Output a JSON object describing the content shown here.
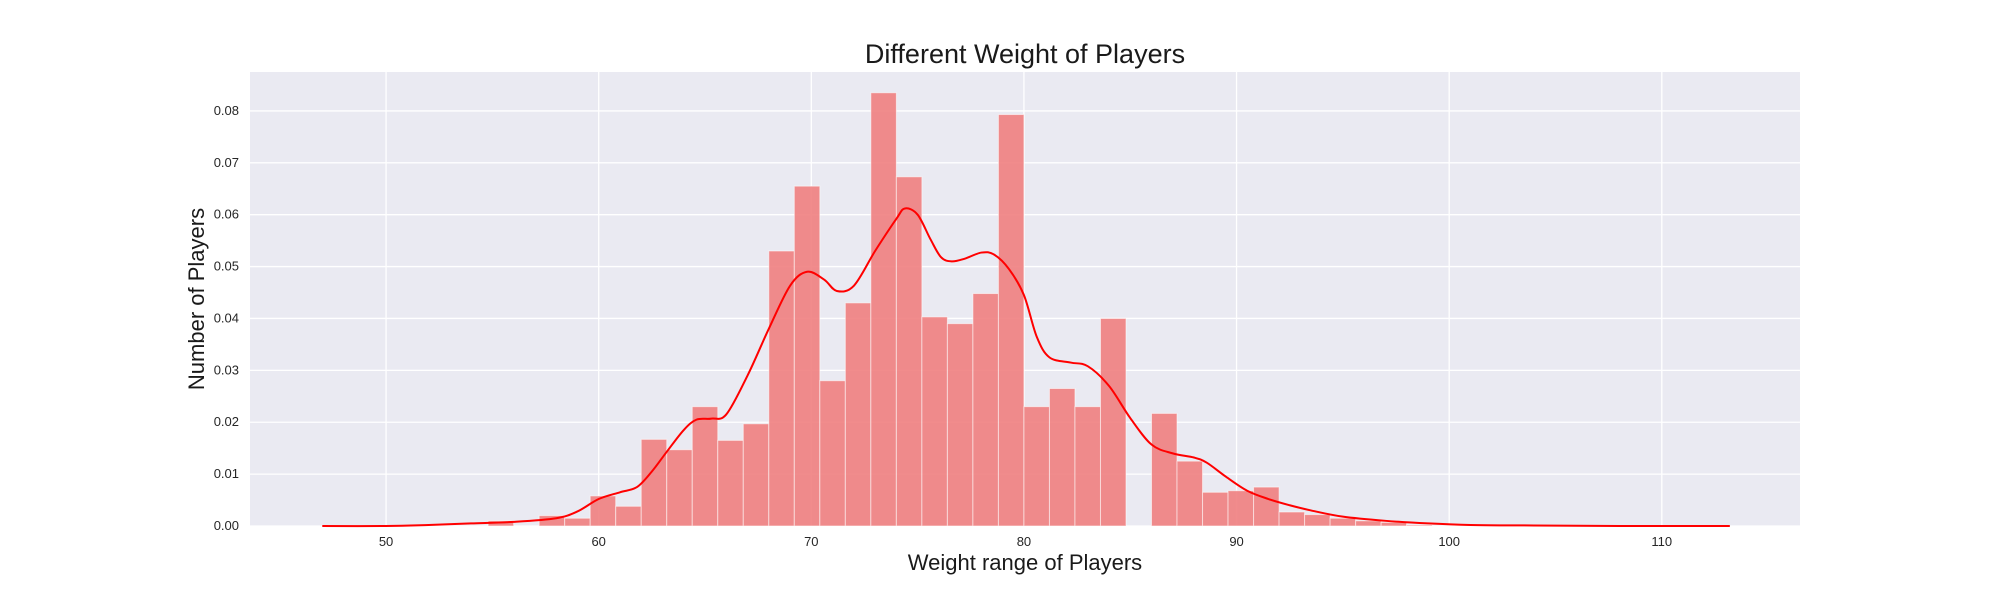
{
  "chart_data": {
    "type": "bar",
    "title": "Different Weight of Players",
    "xlabel": "Weight range of Players",
    "ylabel": "Number of Players",
    "xlim": [
      43.6,
      116.5
    ],
    "ylim": [
      0,
      0.0875
    ],
    "xticks": [
      50,
      60,
      70,
      80,
      90,
      100,
      110
    ],
    "yticks": [
      "0.00",
      "0.01",
      "0.02",
      "0.03",
      "0.04",
      "0.05",
      "0.06",
      "0.07",
      "0.08"
    ],
    "grid": true,
    "colors": {
      "plot_bg": "#eaeaf2",
      "grid": "#ffffff",
      "bar": "#f08080",
      "kde": "#ff0000"
    },
    "bins": [
      {
        "x0": 54.8,
        "x1": 56.0,
        "value": 0.001
      },
      {
        "x0": 56.0,
        "x1": 57.2,
        "value": 0.0
      },
      {
        "x0": 57.2,
        "x1": 58.4,
        "value": 0.002
      },
      {
        "x0": 58.4,
        "x1": 59.6,
        "value": 0.0015
      },
      {
        "x0": 59.6,
        "x1": 60.8,
        "value": 0.0058
      },
      {
        "x0": 60.8,
        "x1": 62.0,
        "value": 0.0038
      },
      {
        "x0": 62.0,
        "x1": 63.2,
        "value": 0.0167
      },
      {
        "x0": 63.2,
        "x1": 64.4,
        "value": 0.0147
      },
      {
        "x0": 64.4,
        "x1": 65.6,
        "value": 0.023
      },
      {
        "x0": 65.6,
        "x1": 66.8,
        "value": 0.0165
      },
      {
        "x0": 66.8,
        "x1": 68.0,
        "value": 0.0197
      },
      {
        "x0": 68.0,
        "x1": 69.2,
        "value": 0.053
      },
      {
        "x0": 69.2,
        "x1": 70.4,
        "value": 0.0655
      },
      {
        "x0": 70.4,
        "x1": 71.6,
        "value": 0.028
      },
      {
        "x0": 71.6,
        "x1": 72.8,
        "value": 0.043
      },
      {
        "x0": 72.8,
        "x1": 74.0,
        "value": 0.0835
      },
      {
        "x0": 74.0,
        "x1": 75.2,
        "value": 0.0673
      },
      {
        "x0": 75.2,
        "x1": 76.4,
        "value": 0.0403
      },
      {
        "x0": 76.4,
        "x1": 77.6,
        "value": 0.039
      },
      {
        "x0": 77.6,
        "x1": 78.8,
        "value": 0.0448
      },
      {
        "x0": 78.8,
        "x1": 80.0,
        "value": 0.0793
      },
      {
        "x0": 80.0,
        "x1": 81.2,
        "value": 0.023
      },
      {
        "x0": 81.2,
        "x1": 82.4,
        "value": 0.0265
      },
      {
        "x0": 82.4,
        "x1": 83.6,
        "value": 0.023
      },
      {
        "x0": 83.6,
        "x1": 84.8,
        "value": 0.04
      },
      {
        "x0": 84.8,
        "x1": 86.0,
        "value": 0.0
      },
      {
        "x0": 86.0,
        "x1": 87.2,
        "value": 0.0217
      },
      {
        "x0": 87.2,
        "x1": 88.4,
        "value": 0.0125
      },
      {
        "x0": 88.4,
        "x1": 89.6,
        "value": 0.0065
      },
      {
        "x0": 89.6,
        "x1": 90.8,
        "value": 0.0068
      },
      {
        "x0": 90.8,
        "x1": 92.0,
        "value": 0.0075
      },
      {
        "x0": 92.0,
        "x1": 93.2,
        "value": 0.0027
      },
      {
        "x0": 93.2,
        "x1": 94.4,
        "value": 0.0022
      },
      {
        "x0": 94.4,
        "x1": 95.6,
        "value": 0.0015
      },
      {
        "x0": 95.6,
        "x1": 96.8,
        "value": 0.001
      },
      {
        "x0": 96.8,
        "x1": 98.0,
        "value": 0.0007
      },
      {
        "x0": 98.0,
        "x1": 99.2,
        "value": 0.0002
      }
    ],
    "kde": {
      "x": [
        47.0,
        50.0,
        52.0,
        54.0,
        56.0,
        58.0,
        59.0,
        60.0,
        61.0,
        61.8,
        62.5,
        63.2,
        64.0,
        64.6,
        65.3,
        66.0,
        67.0,
        68.0,
        69.0,
        69.8,
        70.6,
        71.2,
        72.0,
        73.0,
        74.0,
        74.4,
        75.0,
        75.6,
        76.1,
        76.6,
        77.2,
        78.0,
        78.6,
        79.3,
        80.0,
        80.6,
        81.2,
        82.2,
        83.0,
        84.0,
        85.0,
        86.0,
        87.0,
        88.0,
        88.6,
        89.5,
        90.5,
        91.5,
        92.5,
        93.5,
        95.0,
        97.0,
        99.0,
        101.0,
        104.0,
        108.0,
        113.2
      ],
      "y": [
        0.0,
        0.0,
        0.0002,
        0.0005,
        0.0008,
        0.0015,
        0.0028,
        0.0052,
        0.0065,
        0.0075,
        0.0105,
        0.0143,
        0.0185,
        0.0205,
        0.0207,
        0.0215,
        0.029,
        0.038,
        0.0463,
        0.049,
        0.0475,
        0.0453,
        0.0463,
        0.053,
        0.0592,
        0.0612,
        0.06,
        0.0553,
        0.0518,
        0.051,
        0.0515,
        0.0527,
        0.0523,
        0.0495,
        0.0445,
        0.0365,
        0.0325,
        0.0315,
        0.0308,
        0.027,
        0.0208,
        0.0157,
        0.014,
        0.0132,
        0.0122,
        0.0095,
        0.0068,
        0.0052,
        0.004,
        0.003,
        0.0018,
        0.001,
        0.0005,
        0.0002,
        0.0001,
        0.0,
        0.0
      ]
    }
  }
}
